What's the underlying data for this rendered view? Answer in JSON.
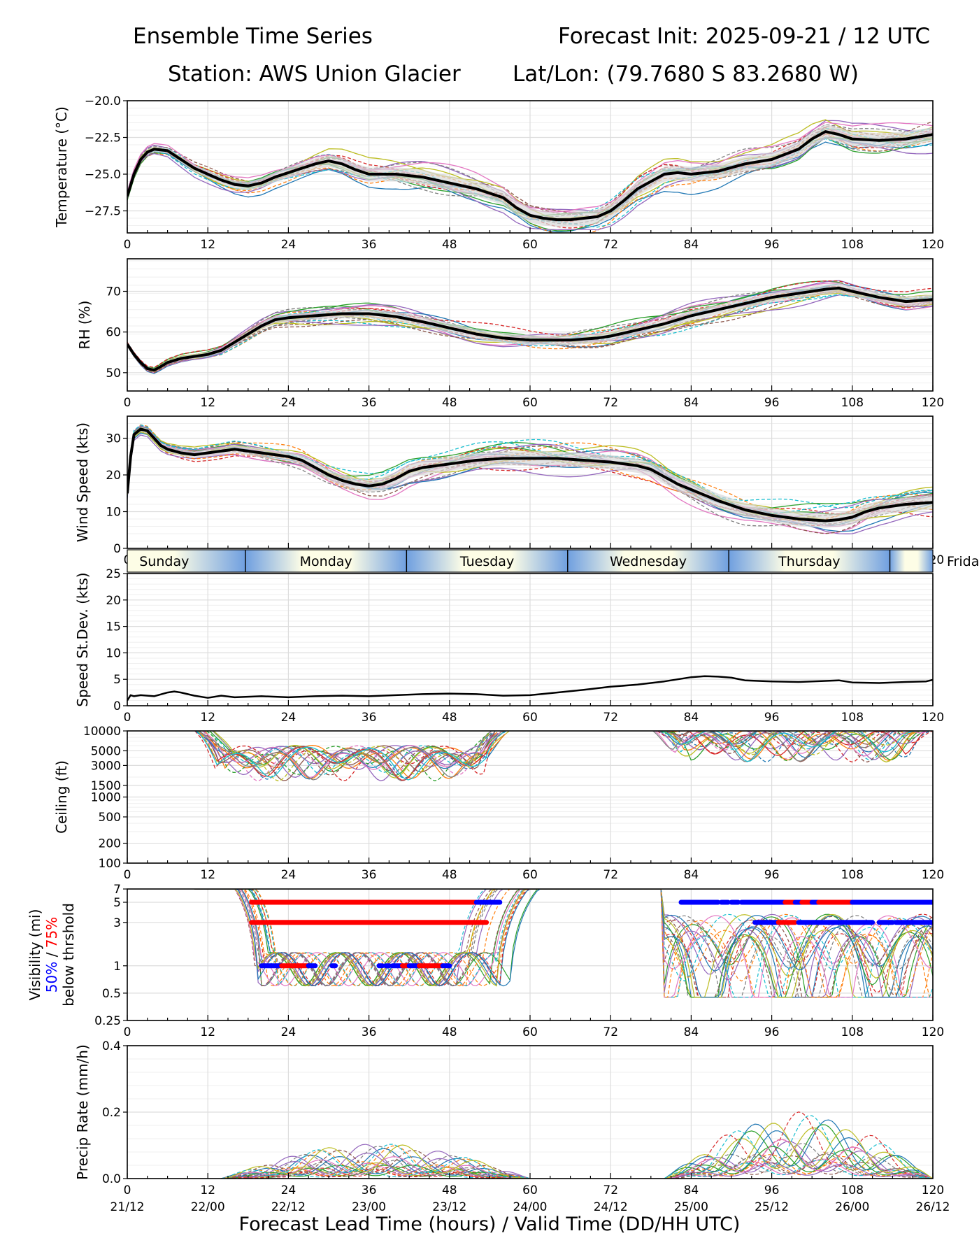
{
  "header": {
    "title_left": "Ensemble Time Series",
    "title_right": "Forecast Init: 2025-09-21 / 12 UTC",
    "station": "Station: AWS Union Glacier",
    "latlon": "Lat/Lon: (79.7680 S 83.2680 W)"
  },
  "chart_data": {
    "type": "line",
    "x": {
      "label": "Forecast Lead Time (hours) / Valid Time (DD/HH UTC)",
      "range": [
        0,
        120
      ],
      "ticks": [
        0,
        12,
        24,
        36,
        48,
        60,
        72,
        84,
        96,
        108,
        120
      ],
      "valid_time_labels": [
        "21/12",
        "22/00",
        "22/12",
        "23/00",
        "23/12",
        "24/00",
        "24/12",
        "25/00",
        "25/12",
        "26/00",
        "26/12"
      ]
    },
    "day_bar": [
      {
        "label": "Sunday",
        "start": 0,
        "end": 17.6
      },
      {
        "label": "Monday",
        "start": 17.6,
        "end": 41.6
      },
      {
        "label": "Tuesday",
        "start": 41.6,
        "end": 65.6
      },
      {
        "label": "Wednesday",
        "start": 65.6,
        "end": 89.6
      },
      {
        "label": "Thursday",
        "start": 89.6,
        "end": 113.6
      },
      {
        "label": "Friday",
        "start": 113.6,
        "end": 137.6
      }
    ],
    "panels": [
      {
        "id": "temperature",
        "ylabel": "Temperature (°C)",
        "ylim": [
          -29,
          -20
        ],
        "yticks": [
          -27.5,
          -25.0,
          -22.5,
          -20.0
        ],
        "ytick_labels": [
          "−27.5",
          "−25.0",
          "−22.5",
          "−20.0"
        ],
        "mean": [
          [
            0,
            -26.5
          ],
          [
            1,
            -25
          ],
          [
            2,
            -24
          ],
          [
            3,
            -23.5
          ],
          [
            4,
            -23.3
          ],
          [
            6,
            -23.4
          ],
          [
            8,
            -24
          ],
          [
            10,
            -24.6
          ],
          [
            12,
            -25
          ],
          [
            14,
            -25.4
          ],
          [
            16,
            -25.7
          ],
          [
            18,
            -25.8
          ],
          [
            20,
            -25.6
          ],
          [
            22,
            -25.2
          ],
          [
            24,
            -24.9
          ],
          [
            26,
            -24.6
          ],
          [
            28,
            -24.3
          ],
          [
            30,
            -24.1
          ],
          [
            32,
            -24.3
          ],
          [
            34,
            -24.7
          ],
          [
            36,
            -25.0
          ],
          [
            40,
            -25.0
          ],
          [
            44,
            -25.2
          ],
          [
            48,
            -25.6
          ],
          [
            52,
            -26.0
          ],
          [
            56,
            -26.6
          ],
          [
            58,
            -27.3
          ],
          [
            60,
            -27.8
          ],
          [
            62,
            -28.0
          ],
          [
            64,
            -28.1
          ],
          [
            66,
            -28.1
          ],
          [
            68,
            -28.0
          ],
          [
            70,
            -27.9
          ],
          [
            72,
            -27.5
          ],
          [
            74,
            -26.8
          ],
          [
            76,
            -26.0
          ],
          [
            78,
            -25.5
          ],
          [
            80,
            -25.0
          ],
          [
            82,
            -24.9
          ],
          [
            84,
            -25.0
          ],
          [
            88,
            -24.8
          ],
          [
            92,
            -24.3
          ],
          [
            96,
            -24.0
          ],
          [
            100,
            -23.3
          ],
          [
            102,
            -22.6
          ],
          [
            104,
            -22.1
          ],
          [
            106,
            -22.3
          ],
          [
            108,
            -22.6
          ],
          [
            112,
            -22.7
          ],
          [
            116,
            -22.6
          ],
          [
            120,
            -22.3
          ]
        ],
        "spread": 0.9
      },
      {
        "id": "rh",
        "ylabel": "RH (%)",
        "ylim": [
          45.5,
          78
        ],
        "yticks": [
          50,
          60,
          70
        ],
        "ytick_labels": [
          "50",
          "60",
          "70"
        ],
        "mean": [
          [
            0,
            57
          ],
          [
            1,
            54.5
          ],
          [
            2,
            52.5
          ],
          [
            3,
            51
          ],
          [
            4,
            50.6
          ],
          [
            5,
            51.5
          ],
          [
            6,
            52.5
          ],
          [
            8,
            53.5
          ],
          [
            12,
            54.5
          ],
          [
            14,
            55.5
          ],
          [
            16,
            57.5
          ],
          [
            18,
            59.5
          ],
          [
            20,
            61.5
          ],
          [
            22,
            63
          ],
          [
            24,
            63.5
          ],
          [
            28,
            64
          ],
          [
            32,
            64.5
          ],
          [
            36,
            64.5
          ],
          [
            40,
            63.8
          ],
          [
            44,
            62.5
          ],
          [
            48,
            61
          ],
          [
            52,
            59.5
          ],
          [
            56,
            58.5
          ],
          [
            60,
            58
          ],
          [
            66,
            58
          ],
          [
            70,
            58.5
          ],
          [
            72,
            59
          ],
          [
            76,
            60.5
          ],
          [
            80,
            62
          ],
          [
            84,
            64
          ],
          [
            88,
            65.5
          ],
          [
            92,
            67
          ],
          [
            96,
            68.5
          ],
          [
            100,
            69.5
          ],
          [
            104,
            70.5
          ],
          [
            106,
            70.8
          ],
          [
            108,
            70
          ],
          [
            112,
            68.5
          ],
          [
            116,
            67.5
          ],
          [
            120,
            68
          ]
        ],
        "spread": 2.2
      },
      {
        "id": "wind_speed",
        "ylabel": "Wind Speed (kts)",
        "ylim": [
          0,
          36
        ],
        "yticks": [
          0,
          10,
          20,
          30
        ],
        "ytick_labels": [
          "0",
          "10",
          "20",
          "30"
        ],
        "mean": [
          [
            0,
            15
          ],
          [
            0.5,
            25
          ],
          [
            1,
            31
          ],
          [
            2,
            32.5
          ],
          [
            3,
            32
          ],
          [
            4,
            30
          ],
          [
            5,
            28
          ],
          [
            6,
            27
          ],
          [
            8,
            26
          ],
          [
            10,
            25.5
          ],
          [
            12,
            26
          ],
          [
            14,
            26.5
          ],
          [
            16,
            27
          ],
          [
            18,
            26.5
          ],
          [
            20,
            26
          ],
          [
            22,
            25.5
          ],
          [
            24,
            25
          ],
          [
            26,
            24
          ],
          [
            28,
            22
          ],
          [
            30,
            20
          ],
          [
            32,
            18.5
          ],
          [
            34,
            17.5
          ],
          [
            36,
            17
          ],
          [
            38,
            17.5
          ],
          [
            40,
            19
          ],
          [
            42,
            21
          ],
          [
            44,
            22
          ],
          [
            48,
            23
          ],
          [
            52,
            24
          ],
          [
            56,
            24.5
          ],
          [
            60,
            24.5
          ],
          [
            64,
            24.5
          ],
          [
            68,
            24
          ],
          [
            72,
            23.5
          ],
          [
            76,
            22.5
          ],
          [
            78,
            21.5
          ],
          [
            80,
            19.5
          ],
          [
            82,
            17.5
          ],
          [
            84,
            16
          ],
          [
            88,
            13
          ],
          [
            92,
            10.5
          ],
          [
            96,
            9
          ],
          [
            100,
            8
          ],
          [
            104,
            7.5
          ],
          [
            106,
            7.8
          ],
          [
            108,
            8.5
          ],
          [
            110,
            10
          ],
          [
            112,
            11
          ],
          [
            116,
            12
          ],
          [
            120,
            12.5
          ]
        ],
        "spread": 3.5
      },
      {
        "id": "speed_stdev",
        "ylabel": "Speed St.Dev. (kts)",
        "ylim": [
          0,
          25
        ],
        "yticks": [
          0,
          5,
          10,
          15,
          20,
          25
        ],
        "ytick_labels": [
          "0",
          "5",
          "10",
          "15",
          "20",
          "25"
        ],
        "mean": [
          [
            0,
            1
          ],
          [
            0.5,
            2
          ],
          [
            1,
            1.8
          ],
          [
            2,
            2
          ],
          [
            4,
            1.8
          ],
          [
            6,
            2.5
          ],
          [
            7,
            2.7
          ],
          [
            8,
            2.5
          ],
          [
            10,
            1.9
          ],
          [
            12,
            1.5
          ],
          [
            14,
            1.9
          ],
          [
            16,
            1.6
          ],
          [
            20,
            1.8
          ],
          [
            24,
            1.6
          ],
          [
            28,
            1.8
          ],
          [
            32,
            1.9
          ],
          [
            36,
            1.8
          ],
          [
            40,
            2
          ],
          [
            44,
            2.2
          ],
          [
            48,
            2.3
          ],
          [
            52,
            2.2
          ],
          [
            56,
            1.9
          ],
          [
            60,
            2
          ],
          [
            64,
            2.5
          ],
          [
            68,
            3
          ],
          [
            72,
            3.6
          ],
          [
            76,
            4
          ],
          [
            80,
            4.6
          ],
          [
            84,
            5.4
          ],
          [
            86,
            5.6
          ],
          [
            88,
            5.5
          ],
          [
            90,
            5.3
          ],
          [
            92,
            4.8
          ],
          [
            96,
            4.6
          ],
          [
            100,
            4.5
          ],
          [
            104,
            4.7
          ],
          [
            106,
            4.8
          ],
          [
            108,
            4.4
          ],
          [
            112,
            4.3
          ],
          [
            116,
            4.5
          ],
          [
            119,
            4.6
          ],
          [
            120,
            4.9
          ]
        ],
        "spread": 0
      },
      {
        "id": "ceiling",
        "ylabel": "Ceiling (ft)",
        "ylim": [
          100,
          10000
        ],
        "scale": "log",
        "yticks": [
          100,
          200,
          500,
          1000,
          1500,
          3000,
          5000,
          10000
        ],
        "ytick_labels": [
          "100",
          "200",
          "500",
          "1000",
          "1500",
          "3000",
          "5000",
          "10000"
        ],
        "ensemble_windows": [
          [
            10,
            57,
            3900
          ],
          [
            78,
            120,
            7500
          ]
        ]
      },
      {
        "id": "visibility",
        "ylabel": "Visibility (mi)",
        "ylabel_50": "50%",
        "ylabel_sep": " / ",
        "ylabel_75": "75%",
        "ylabel_below": "below thrshold",
        "ylim": [
          0.25,
          7
        ],
        "scale": "log",
        "yticks": [
          0.25,
          0.5,
          1,
          3,
          5,
          7
        ],
        "ytick_labels": [
          "0.25",
          "0.5",
          "1",
          "3",
          "5",
          "7"
        ],
        "thresholds": [
          {
            "level": 5,
            "segments": [
              [
                18.5,
                52,
                "75"
              ],
              [
                52,
                55.5,
                "50"
              ],
              [
                82.5,
                88,
                "50"
              ],
              [
                88.5,
                89.5,
                "50"
              ],
              [
                90,
                91,
                "50"
              ],
              [
                91.5,
                98,
                "50"
              ],
              [
                98,
                99.5,
                "75"
              ],
              [
                99.5,
                100.5,
                "50"
              ],
              [
                100.5,
                102,
                "75"
              ],
              [
                102,
                103,
                "50"
              ],
              [
                103,
                108,
                "75"
              ],
              [
                108,
                120,
                "50"
              ]
            ]
          },
          {
            "level": 3,
            "segments": [
              [
                18.5,
                53.5,
                "75"
              ],
              [
                93.5,
                97,
                "50"
              ],
              [
                97,
                99.5,
                "75"
              ],
              [
                100,
                109,
                "50"
              ],
              [
                109,
                111,
                "50"
              ],
              [
                112,
                114,
                "50"
              ],
              [
                114.5,
                117,
                "50"
              ],
              [
                117,
                120,
                "50"
              ]
            ]
          },
          {
            "level": 1,
            "segments": [
              [
                20,
                23,
                "50"
              ],
              [
                23,
                27,
                "75"
              ],
              [
                27,
                28,
                "50"
              ],
              [
                30.5,
                31,
                "50"
              ],
              [
                37.5,
                38,
                "50"
              ],
              [
                38.5,
                39,
                "50"
              ],
              [
                39.5,
                41,
                "50"
              ],
              [
                41,
                42,
                "75"
              ],
              [
                42,
                43.5,
                "50"
              ],
              [
                43.5,
                47,
                "75"
              ],
              [
                47,
                48,
                "50"
              ]
            ]
          }
        ]
      },
      {
        "id": "precip",
        "ylabel": "Precip Rate (mm/h)",
        "ylim": [
          0,
          0.4
        ],
        "yticks": [
          0.0,
          0.2,
          0.4
        ],
        "ytick_labels": [
          "0.0",
          "0.2",
          "0.4"
        ],
        "ensemble_windows": [
          [
            14,
            60,
            0.06
          ],
          [
            80,
            120,
            0.12
          ]
        ]
      }
    ],
    "colors": {
      "mean": "#000000",
      "spread_fill": "#d9d9d9",
      "pct50": "#0000ff",
      "pct75": "#ff0000",
      "ensemble": [
        "#1f77b4",
        "#ff7f0e",
        "#2ca02c",
        "#d62728",
        "#9467bd",
        "#8c564b",
        "#e377c2",
        "#7f7f7f",
        "#bcbd22",
        "#17becf"
      ],
      "day_light": "#fdfde6",
      "day_dark": "#6f9fe0"
    }
  }
}
